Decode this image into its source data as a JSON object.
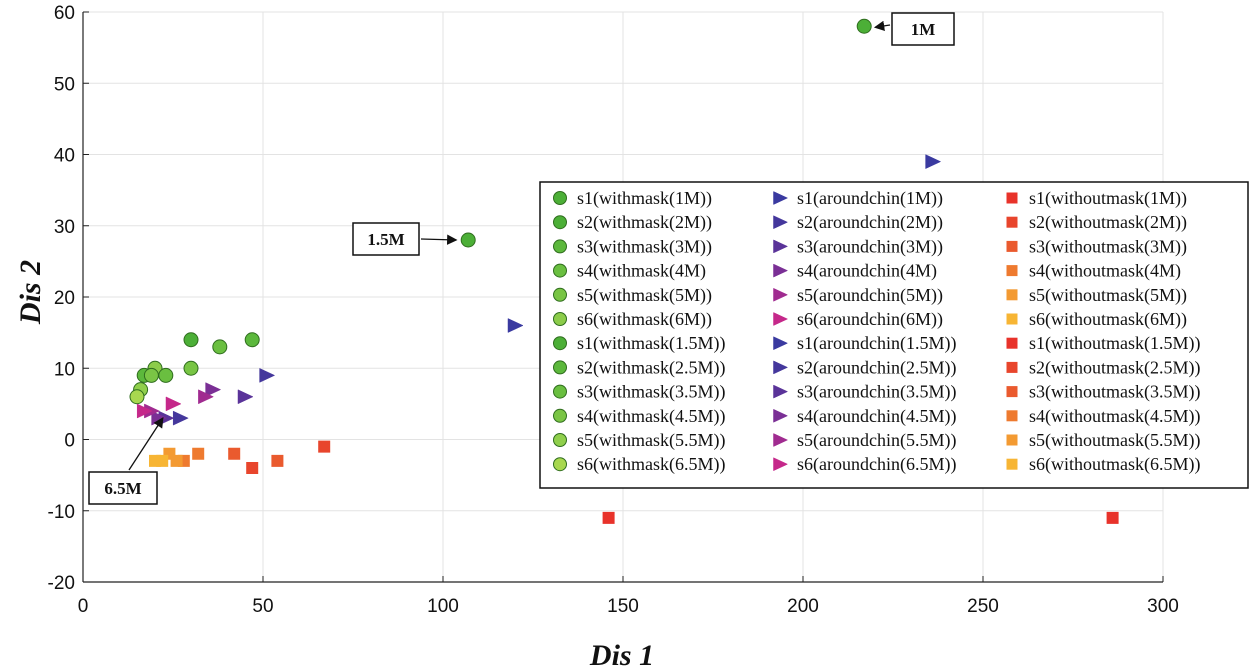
{
  "chart_data": {
    "type": "scatter",
    "title": "",
    "xlabel": "Dis 1",
    "ylabel": "Dis 2",
    "xlim": [
      0,
      300
    ],
    "ylim": [
      -20,
      60
    ],
    "xticks": [
      0,
      50,
      100,
      150,
      200,
      250,
      300
    ],
    "yticks": [
      -20,
      -10,
      0,
      10,
      20,
      30,
      40,
      50,
      60
    ],
    "grid": true,
    "legend_position": "center-right",
    "series": [
      {
        "name": "s1(withmask(1M))",
        "marker": "circle",
        "color": "#4caf37",
        "x": [
          217
        ],
        "y": [
          58
        ]
      },
      {
        "name": "s2(withmask(2M))",
        "marker": "circle",
        "color": "#4caf37",
        "x": [
          30
        ],
        "y": [
          14
        ]
      },
      {
        "name": "s3(withmask(3M))",
        "marker": "circle",
        "color": "#5cb83c",
        "x": [
          47
        ],
        "y": [
          14
        ]
      },
      {
        "name": "s4(withmask(4M)",
        "marker": "circle",
        "color": "#6abf40",
        "x": [
          38
        ],
        "y": [
          13
        ]
      },
      {
        "name": "s5(withmask(5M))",
        "marker": "circle",
        "color": "#78c544",
        "x": [
          30
        ],
        "y": [
          10
        ]
      },
      {
        "name": "s6(withmask(6M))",
        "marker": "circle",
        "color": "#8ccc4a",
        "x": [
          20
        ],
        "y": [
          10
        ]
      },
      {
        "name": "s1(withmask(1.5M))",
        "marker": "circle",
        "color": "#4caf37",
        "x": [
          107
        ],
        "y": [
          28
        ]
      },
      {
        "name": "s2(withmask(2.5M))",
        "marker": "circle",
        "color": "#5cb83c",
        "x": [
          17
        ],
        "y": [
          9
        ]
      },
      {
        "name": "s3(withmask(3.5M))",
        "marker": "circle",
        "color": "#6abf40",
        "x": [
          23
        ],
        "y": [
          9
        ]
      },
      {
        "name": "s4(withmask(4.5M))",
        "marker": "circle",
        "color": "#7ac545",
        "x": [
          19
        ],
        "y": [
          9
        ]
      },
      {
        "name": "s5(withmask(5.5M))",
        "marker": "circle",
        "color": "#90cf4c",
        "x": [
          16
        ],
        "y": [
          7
        ]
      },
      {
        "name": "s6(withmask(6.5M))",
        "marker": "circle",
        "color": "#a8d84f",
        "x": [
          15
        ],
        "y": [
          6
        ]
      },
      {
        "name": "s1(aroundchin(1M))",
        "marker": "triangle-right",
        "color": "#3a3aa0",
        "x": [
          236
        ],
        "y": [
          39
        ]
      },
      {
        "name": "s2(aroundchin(2M))",
        "marker": "triangle-right",
        "color": "#44379c",
        "x": [
          51
        ],
        "y": [
          9
        ]
      },
      {
        "name": "s3(aroundchin(3M))",
        "marker": "triangle-right",
        "color": "#5a3399",
        "x": [
          45
        ],
        "y": [
          6
        ]
      },
      {
        "name": "s4(aroundchin(4M)",
        "marker": "triangle-right",
        "color": "#7a2f95",
        "x": [
          36
        ],
        "y": [
          7
        ]
      },
      {
        "name": "s5(aroundchin(5M))",
        "marker": "triangle-right",
        "color": "#a02b90",
        "x": [
          34
        ],
        "y": [
          6
        ]
      },
      {
        "name": "s6(aroundchin(6M))",
        "marker": "triangle-right",
        "color": "#c5288a",
        "x": [
          25
        ],
        "y": [
          5
        ]
      },
      {
        "name": "s1(aroundchin(1.5M))",
        "marker": "triangle-right",
        "color": "#3a3aa0",
        "x": [
          120
        ],
        "y": [
          16
        ]
      },
      {
        "name": "s2(aroundchin(2.5M))",
        "marker": "triangle-right",
        "color": "#44379c",
        "x": [
          27
        ],
        "y": [
          3
        ]
      },
      {
        "name": "s3(aroundchin(3.5M))",
        "marker": "triangle-right",
        "color": "#5a3399",
        "x": [
          23
        ],
        "y": [
          3
        ]
      },
      {
        "name": "s4(aroundchin(4.5M))",
        "marker": "triangle-right",
        "color": "#7a2f95",
        "x": [
          21
        ],
        "y": [
          3
        ]
      },
      {
        "name": "s5(aroundchin(5.5M))",
        "marker": "triangle-right",
        "color": "#a02b90",
        "x": [
          19
        ],
        "y": [
          4
        ]
      },
      {
        "name": "s6(aroundchin(6.5M))",
        "marker": "triangle-right",
        "color": "#c5288a",
        "x": [
          17
        ],
        "y": [
          4
        ]
      },
      {
        "name": "s1(withoutmask(1M))",
        "marker": "square",
        "color": "#e8322a",
        "x": [
          286
        ],
        "y": [
          -11
        ]
      },
      {
        "name": "s2(withoutmask(2M))",
        "marker": "square",
        "color": "#e8452c",
        "x": [
          67
        ],
        "y": [
          -1
        ]
      },
      {
        "name": "s3(withoutmask(3M))",
        "marker": "square",
        "color": "#ea5a2e",
        "x": [
          54
        ],
        "y": [
          -3
        ]
      },
      {
        "name": "s4(withoutmask(4M)",
        "marker": "square",
        "color": "#ee7a2f",
        "x": [
          32
        ],
        "y": [
          -2
        ]
      },
      {
        "name": "s5(withoutmask(5M))",
        "marker": "square",
        "color": "#f39a32",
        "x": [
          24
        ],
        "y": [
          -2
        ]
      },
      {
        "name": "s6(withoutmask(6M))",
        "marker": "square",
        "color": "#f7b534",
        "x": [
          20
        ],
        "y": [
          -3
        ]
      },
      {
        "name": "s1(withoutmask(1.5M))",
        "marker": "square",
        "color": "#e8322a",
        "x": [
          146
        ],
        "y": [
          -11
        ]
      },
      {
        "name": "s2(withoutmask(2.5M))",
        "marker": "square",
        "color": "#e8452c",
        "x": [
          47
        ],
        "y": [
          -4
        ]
      },
      {
        "name": "s3(withoutmask(3.5M))",
        "marker": "square",
        "color": "#ea5a2e",
        "x": [
          42
        ],
        "y": [
          -2
        ]
      },
      {
        "name": "s4(withoutmask(4.5M))",
        "marker": "square",
        "color": "#ee7a2f",
        "x": [
          28
        ],
        "y": [
          -3
        ]
      },
      {
        "name": "s5(withoutmask(5.5M))",
        "marker": "square",
        "color": "#f39a32",
        "x": [
          26
        ],
        "y": [
          -3
        ]
      },
      {
        "name": "s6(withoutmask(6.5M))",
        "marker": "square",
        "color": "#f7b534",
        "x": [
          22
        ],
        "y": [
          -3
        ]
      }
    ],
    "annotations": [
      {
        "text": "1M",
        "target_x": 217,
        "target_y": 58
      },
      {
        "text": "1.5M",
        "target_x": 107,
        "target_y": 28
      },
      {
        "text": "6.5M",
        "target_x": 13,
        "target_y": 3
      }
    ]
  }
}
